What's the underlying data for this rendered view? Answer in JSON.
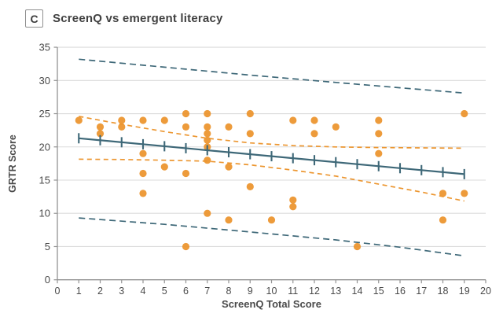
{
  "figure": {
    "panel_label": "C",
    "title": "ScreenQ vs emergent literacy"
  },
  "chart_data": {
    "type": "scatter",
    "title": "ScreenQ vs emergent literacy",
    "xlabel": "ScreenQ Total Score",
    "ylabel": "GRTR Score",
    "xlim": [
      0,
      20
    ],
    "ylim": [
      0,
      35
    ],
    "x_ticks": [
      0,
      1,
      2,
      3,
      4,
      5,
      6,
      7,
      8,
      9,
      10,
      11,
      12,
      13,
      14,
      15,
      16,
      17,
      18,
      19,
      20
    ],
    "y_ticks": [
      0,
      5,
      10,
      15,
      20,
      25,
      30,
      35
    ],
    "grid": "horizontal-only",
    "legend": "none",
    "colors": {
      "points": "#EC9630",
      "regression": "#3E6878",
      "confidence_band": "#EC9630",
      "prediction_band": "#3E6878",
      "gridline": "#DBDBDB",
      "axis": "#939393",
      "text": "#4A4A4A"
    },
    "series": [
      {
        "name": "observations",
        "type": "scatter",
        "color": "#EC9630",
        "points": [
          [
            1,
            24
          ],
          [
            2,
            23
          ],
          [
            2,
            22
          ],
          [
            3,
            24
          ],
          [
            3,
            23
          ],
          [
            4,
            24
          ],
          [
            4,
            19
          ],
          [
            4,
            16
          ],
          [
            4,
            13
          ],
          [
            5,
            24
          ],
          [
            5,
            17
          ],
          [
            6,
            25
          ],
          [
            6,
            23
          ],
          [
            6,
            16
          ],
          [
            6,
            5
          ],
          [
            7,
            25
          ],
          [
            7,
            23
          ],
          [
            7,
            22
          ],
          [
            7,
            21
          ],
          [
            7,
            20
          ],
          [
            7,
            18
          ],
          [
            7,
            10
          ],
          [
            8,
            23
          ],
          [
            8,
            17
          ],
          [
            8,
            9
          ],
          [
            9,
            25
          ],
          [
            9,
            22
          ],
          [
            9,
            14
          ],
          [
            10,
            9
          ],
          [
            11,
            24
          ],
          [
            11,
            12
          ],
          [
            11,
            11
          ],
          [
            12,
            24
          ],
          [
            12,
            22
          ],
          [
            13,
            23
          ],
          [
            14,
            5
          ],
          [
            15,
            24
          ],
          [
            15,
            22
          ],
          [
            15,
            19
          ],
          [
            18,
            13
          ],
          [
            18,
            9
          ],
          [
            19,
            25
          ],
          [
            19,
            13
          ]
        ]
      },
      {
        "name": "regression-line",
        "type": "line",
        "style": "solid",
        "color": "#3E6878",
        "points": [
          [
            1,
            21.3
          ],
          [
            19,
            15.9
          ]
        ],
        "tick_markers_at_x": [
          1,
          2,
          3,
          4,
          5,
          6,
          7,
          8,
          9,
          10,
          11,
          12,
          13,
          14,
          15,
          16,
          17,
          18,
          19
        ]
      },
      {
        "name": "confidence-upper",
        "type": "line",
        "style": "dashed",
        "color": "#EC9630",
        "points": [
          [
            1,
            24.6
          ],
          [
            3,
            23.4
          ],
          [
            5,
            22.3
          ],
          [
            7,
            21.3
          ],
          [
            9,
            20.6
          ],
          [
            11,
            20.2
          ],
          [
            13,
            20.0
          ],
          [
            15,
            19.9
          ],
          [
            17,
            19.85
          ],
          [
            19,
            19.8
          ]
        ]
      },
      {
        "name": "confidence-lower",
        "type": "line",
        "style": "dashed",
        "color": "#EC9630",
        "points": [
          [
            1,
            18.15
          ],
          [
            3,
            18.1
          ],
          [
            5,
            18.0
          ],
          [
            7,
            17.85
          ],
          [
            9,
            17.3
          ],
          [
            11,
            16.5
          ],
          [
            13,
            15.6
          ],
          [
            15,
            14.4
          ],
          [
            17,
            13.2
          ],
          [
            19,
            11.85
          ]
        ]
      },
      {
        "name": "prediction-upper",
        "type": "line",
        "style": "dashed",
        "color": "#3E6878",
        "points": [
          [
            1,
            33.2
          ],
          [
            5,
            32.0
          ],
          [
            9,
            30.8
          ],
          [
            13,
            29.7
          ],
          [
            16,
            28.9
          ],
          [
            19,
            28.1
          ]
        ]
      },
      {
        "name": "prediction-lower",
        "type": "line",
        "style": "dashed",
        "color": "#3E6878",
        "points": [
          [
            1,
            9.3
          ],
          [
            5,
            8.35
          ],
          [
            9,
            7.2
          ],
          [
            13,
            6.0
          ],
          [
            16,
            4.9
          ],
          [
            19,
            3.6
          ]
        ]
      }
    ]
  }
}
